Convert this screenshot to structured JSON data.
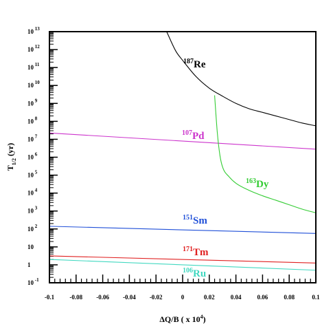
{
  "chart_data": {
    "type": "line",
    "xlabel": "ΔQ/B  ( x 10",
    "xlabel_exponent": "4",
    "xlabel_suffix": ")",
    "ylabel_main": "T",
    "ylabel_sub": "1/2",
    "ylabel_suffix": " (yr)",
    "xlim": [
      -0.1,
      0.1
    ],
    "ylim_log10": [
      -1,
      13
    ],
    "y_scale": "log",
    "grid": false,
    "x_ticks": [
      {
        "value": -0.1,
        "label": "-0.1"
      },
      {
        "value": -0.08,
        "label": "-0.08"
      },
      {
        "value": -0.06,
        "label": "-0.06"
      },
      {
        "value": -0.04,
        "label": "-0.04"
      },
      {
        "value": -0.02,
        "label": "-0.02"
      },
      {
        "value": 0,
        "label": "0"
      },
      {
        "value": 0.02,
        "label": "0.02"
      },
      {
        "value": 0.04,
        "label": "0.04"
      },
      {
        "value": 0.06,
        "label": "0.06"
      },
      {
        "value": 0.08,
        "label": "0.08"
      },
      {
        "value": 0.1,
        "label": "0.1"
      }
    ],
    "y_ticks": [
      {
        "exp": -1,
        "base": "10",
        "sup": "-1"
      },
      {
        "exp": 0,
        "base": "1",
        "sup": ""
      },
      {
        "exp": 1,
        "base": "10",
        "sup": ""
      },
      {
        "exp": 2,
        "base": "10",
        "sup": "2"
      },
      {
        "exp": 3,
        "base": "10",
        "sup": "3"
      },
      {
        "exp": 4,
        "base": "10",
        "sup": "4"
      },
      {
        "exp": 5,
        "base": "10",
        "sup": "5"
      },
      {
        "exp": 6,
        "base": "10",
        "sup": "6"
      },
      {
        "exp": 7,
        "base": "10",
        "sup": "7"
      },
      {
        "exp": 8,
        "base": "10",
        "sup": "8"
      },
      {
        "exp": 9,
        "base": "10",
        "sup": "9"
      },
      {
        "exp": 10,
        "base": "10",
        "sup": "10"
      },
      {
        "exp": 11,
        "base": "10",
        "sup": "11"
      },
      {
        "exp": 12,
        "base": "10",
        "sup": "12"
      },
      {
        "exp": 13,
        "base": "10",
        "sup": "13"
      }
    ],
    "series": [
      {
        "mass": "187",
        "element": "Re",
        "color": "#000000",
        "x": [
          -0.012,
          -0.005,
          0.0,
          0.01,
          0.02,
          0.03,
          0.04,
          0.05,
          0.06,
          0.07,
          0.08,
          0.09,
          0.1
        ],
        "log10_y": [
          13.0,
          11.9,
          11.4,
          10.5,
          9.85,
          9.4,
          9.0,
          8.7,
          8.5,
          8.3,
          8.1,
          7.9,
          7.75
        ]
      },
      {
        "mass": "107",
        "element": "Pd",
        "color": "#cc33cc",
        "x": [
          -0.1,
          0.1
        ],
        "log10_y": [
          7.35,
          6.45
        ]
      },
      {
        "mass": "163",
        "element": "Dy",
        "color": "#33cc33",
        "x": [
          0.024,
          0.026,
          0.028,
          0.03,
          0.035,
          0.04,
          0.05,
          0.06,
          0.07,
          0.08,
          0.09,
          0.1
        ],
        "log10_y": [
          9.45,
          7.4,
          6.1,
          5.45,
          4.9,
          4.55,
          4.15,
          3.85,
          3.6,
          3.35,
          3.1,
          2.9
        ]
      },
      {
        "mass": "151",
        "element": "Sm",
        "color": "#1f4fd8",
        "x": [
          -0.1,
          0.1
        ],
        "log10_y": [
          2.15,
          1.75
        ]
      },
      {
        "mass": "171",
        "element": "Tm",
        "color": "#e02020",
        "x": [
          -0.1,
          0.1
        ],
        "log10_y": [
          0.5,
          0.1
        ]
      },
      {
        "mass": "106",
        "element": "Ru",
        "color": "#40d8c0",
        "x": [
          -0.1,
          0.1
        ],
        "log10_y": [
          0.3,
          -0.3
        ]
      }
    ]
  }
}
